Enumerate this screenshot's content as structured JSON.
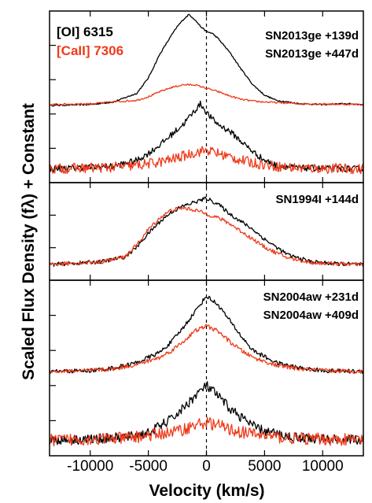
{
  "chart_data": {
    "type": "line",
    "title": "",
    "xlabel": "Velocity (km/s)",
    "ylabel": "Scaled Flux Density (fλ) + Constant",
    "xlim": [
      -13500,
      13500
    ],
    "x_ticks": [
      -10000,
      -5000,
      0,
      5000,
      10000
    ],
    "x_tick_labels": [
      "-10000",
      "-5000",
      "0",
      "5000",
      "10000"
    ],
    "reference_line_x": 0,
    "legend": {
      "placement": "top-left",
      "entries": [
        {
          "label": "[OI] 6315",
          "color": "#000000"
        },
        {
          "label": "[CaII] 7306",
          "color": "#ee3a1a"
        }
      ]
    },
    "colors": {
      "oi": "#000000",
      "caii": "#ee3a1a"
    },
    "panels": [
      {
        "labels": [
          "SN2013ge +139d",
          "SN2013ge +447d"
        ],
        "ylim": [
          0,
          10
        ],
        "series": [
          {
            "line": "[OI] 6315",
            "epoch": "+139d",
            "offset": 4.5,
            "x": [
              -13500,
              -10000,
              -8000,
              -6000,
              -5000,
              -4000,
              -3000,
              -2500,
              -2000,
              -1500,
              -1000,
              -500,
              0,
              500,
              1000,
              2000,
              3000,
              4000,
              5000,
              6000,
              8000,
              10000,
              12000,
              13500
            ],
            "y": [
              0.0,
              0.05,
              0.2,
              0.7,
              1.6,
              3.0,
              4.1,
              4.6,
              5.0,
              5.3,
              5.0,
              4.6,
              4.3,
              4.2,
              3.9,
              3.1,
              2.1,
              1.2,
              0.6,
              0.3,
              0.1,
              0.05,
              0.1,
              0.05
            ],
            "noise": 0.04
          },
          {
            "line": "[CaII] 7306",
            "epoch": "+139d",
            "offset": 4.5,
            "x": [
              -13500,
              -10000,
              -6000,
              -5000,
              -4000,
              -3000,
              -2000,
              -1000,
              0,
              1000,
              2000,
              3000,
              4000,
              5000,
              8000,
              13500
            ],
            "y": [
              0.05,
              0.1,
              0.3,
              0.5,
              0.8,
              1.05,
              1.2,
              1.2,
              1.0,
              0.8,
              0.55,
              0.35,
              0.25,
              0.2,
              0.1,
              0.05
            ],
            "noise": 0.05
          },
          {
            "line": "[OI] 6315",
            "epoch": "+447d",
            "offset": 0.8,
            "x": [
              -13500,
              -8000,
              -6000,
              -5000,
              -4000,
              -3000,
              -2000,
              -1500,
              -1000,
              -500,
              0,
              500,
              1000,
              2000,
              3000,
              4000,
              5000,
              6000,
              8000,
              13500
            ],
            "y": [
              0.0,
              0.15,
              0.5,
              0.9,
              1.4,
              2.0,
              2.6,
              3.0,
              3.4,
              3.8,
              3.3,
              2.9,
              2.6,
              2.2,
              1.6,
              1.0,
              0.5,
              0.2,
              0.05,
              0.0
            ],
            "noise": 0.18
          },
          {
            "line": "[CaII] 7306",
            "epoch": "+447d",
            "offset": 0.8,
            "x": [
              -13500,
              -8000,
              -6000,
              -4000,
              -3000,
              -2000,
              -1000,
              0,
              1000,
              2000,
              3000,
              4000,
              6000,
              8000,
              13500
            ],
            "y": [
              0.0,
              0.1,
              0.2,
              0.4,
              0.55,
              0.75,
              0.95,
              1.1,
              0.9,
              0.7,
              0.5,
              0.35,
              0.15,
              0.05,
              0.0
            ],
            "noise": 0.3
          }
        ]
      },
      {
        "labels": [
          "SN1994I +144d"
        ],
        "ylim": [
          0,
          5
        ],
        "series": [
          {
            "line": "[OI] 6315",
            "epoch": "+144d",
            "offset": 0.8,
            "x": [
              -13500,
              -12000,
              -9000,
              -7000,
              -6000,
              -5000,
              -4000,
              -3000,
              -2000,
              -1000,
              0,
              1000,
              2000,
              3000,
              4000,
              5000,
              6000,
              7000,
              9000,
              11000,
              13500
            ],
            "y": [
              0.0,
              0.05,
              0.15,
              0.4,
              0.9,
              1.6,
              2.2,
              2.7,
              3.0,
              3.2,
              3.4,
              3.1,
              2.6,
              2.2,
              1.8,
              1.3,
              0.9,
              0.5,
              0.15,
              0.05,
              0.0
            ],
            "noise": 0.1
          },
          {
            "line": "[CaII] 7306",
            "epoch": "+144d",
            "offset": 0.8,
            "x": [
              -13500,
              -12000,
              -9000,
              -7000,
              -6000,
              -5000,
              -4000,
              -3000,
              -2000,
              -1000,
              0,
              1000,
              2000,
              3000,
              4000,
              5000,
              6000,
              7000,
              9000,
              11000,
              13500
            ],
            "y": [
              0.0,
              0.05,
              0.15,
              0.4,
              1.0,
              1.8,
              2.4,
              2.8,
              2.9,
              2.8,
              2.6,
              2.4,
              2.1,
              1.7,
              1.3,
              0.9,
              0.6,
              0.35,
              0.1,
              0.05,
              0.0
            ],
            "noise": 0.1
          }
        ]
      },
      {
        "labels": [
          "SN2004aw +231d",
          "SN2004aw +409d"
        ],
        "ylim": [
          0,
          10
        ],
        "series": [
          {
            "line": "[OI] 6315",
            "epoch": "+231d",
            "offset": 4.8,
            "x": [
              -13500,
              -10000,
              -8000,
              -6000,
              -4000,
              -3000,
              -2000,
              -1000,
              0,
              1000,
              2000,
              3000,
              4000,
              6000,
              8000,
              10000,
              13500
            ],
            "y": [
              0.0,
              0.05,
              0.2,
              0.5,
              1.1,
              1.7,
              2.5,
              3.4,
              4.3,
              3.8,
              2.9,
              2.0,
              1.2,
              0.5,
              0.2,
              0.05,
              0.0
            ],
            "noise": 0.12
          },
          {
            "line": "[CaII] 7306",
            "epoch": "+231d",
            "offset": 4.8,
            "x": [
              -13500,
              -10000,
              -8000,
              -6000,
              -4000,
              -3000,
              -2000,
              -1000,
              0,
              1000,
              2000,
              3000,
              4000,
              6000,
              8000,
              10000,
              13500
            ],
            "y": [
              0.0,
              0.05,
              0.15,
              0.4,
              0.8,
              1.2,
              1.7,
              2.3,
              2.6,
              2.3,
              1.7,
              1.2,
              0.8,
              0.35,
              0.15,
              0.05,
              0.0
            ],
            "noise": 0.12
          },
          {
            "line": "[OI] 6315",
            "epoch": "+409d",
            "offset": 0.9,
            "x": [
              -13500,
              -10000,
              -7000,
              -5000,
              -4000,
              -3000,
              -2000,
              -1000,
              0,
              1000,
              2000,
              3000,
              4000,
              5000,
              7000,
              10000,
              13500
            ],
            "y": [
              0.0,
              0.05,
              0.15,
              0.4,
              0.8,
              1.2,
              1.8,
              2.5,
              3.1,
              2.5,
              1.8,
              1.3,
              0.8,
              0.5,
              0.2,
              0.05,
              0.0
            ],
            "noise": 0.28
          },
          {
            "line": "[CaII] 7306",
            "epoch": "+409d",
            "offset": 0.9,
            "x": [
              -13500,
              -10000,
              -7000,
              -5000,
              -3000,
              -2000,
              -1000,
              0,
              1000,
              2000,
              3000,
              5000,
              7000,
              10000,
              13500
            ],
            "y": [
              0.0,
              0.05,
              0.1,
              0.25,
              0.45,
              0.6,
              0.85,
              1.0,
              0.85,
              0.6,
              0.45,
              0.25,
              0.1,
              0.05,
              0.0
            ],
            "noise": 0.35
          }
        ]
      }
    ]
  }
}
